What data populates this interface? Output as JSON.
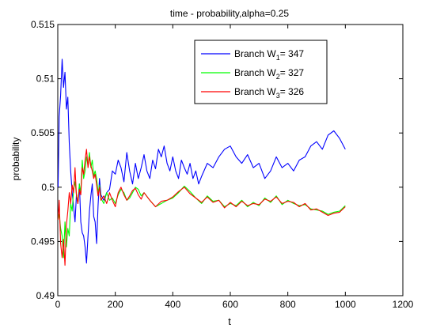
{
  "chart_data": {
    "type": "line",
    "title": "time - probability,alpha=0.25",
    "xlabel": "t",
    "ylabel": "probability",
    "xlim": [
      0,
      1200
    ],
    "ylim": [
      0.49,
      0.515
    ],
    "xticks": [
      0,
      200,
      400,
      600,
      800,
      1000,
      1200
    ],
    "xtick_labels": [
      "0",
      "200",
      "400",
      "600",
      "800",
      "1000",
      "1200"
    ],
    "yticks": [
      0.49,
      0.495,
      0.5,
      0.505,
      0.51,
      0.515
    ],
    "ytick_labels": [
      "0.49",
      "0.495",
      "0.5",
      "0.505",
      "0.51",
      "0.515"
    ],
    "grid": false,
    "legend_position": "top-right",
    "series": [
      {
        "name": "Branch W1= 347",
        "legend_parts": [
          "Branch W",
          "1",
          "= 347"
        ],
        "color": "#0000ff",
        "x": [
          1,
          5,
          10,
          15,
          20,
          25,
          30,
          35,
          40,
          45,
          50,
          55,
          60,
          65,
          70,
          75,
          80,
          85,
          90,
          95,
          100,
          105,
          110,
          115,
          120,
          125,
          130,
          135,
          140,
          145,
          150,
          160,
          170,
          180,
          190,
          200,
          210,
          220,
          230,
          240,
          250,
          260,
          270,
          280,
          290,
          300,
          310,
          320,
          330,
          340,
          350,
          360,
          370,
          380,
          390,
          400,
          410,
          420,
          430,
          440,
          450,
          460,
          470,
          480,
          490,
          500,
          520,
          540,
          560,
          580,
          600,
          620,
          640,
          660,
          680,
          700,
          720,
          740,
          760,
          780,
          800,
          820,
          840,
          860,
          880,
          900,
          920,
          940,
          960,
          980,
          1000
        ],
        "y": [
          0.5,
          0.5065,
          0.5085,
          0.5118,
          0.5092,
          0.5106,
          0.5072,
          0.5083,
          0.5041,
          0.5015,
          0.4995,
          0.4982,
          0.4968,
          0.4993,
          0.4985,
          0.5003,
          0.4968,
          0.4958,
          0.4955,
          0.4945,
          0.493,
          0.4955,
          0.4978,
          0.4992,
          0.5003,
          0.4973,
          0.4968,
          0.4948,
          0.4983,
          0.5008,
          0.4993,
          0.4988,
          0.4995,
          0.4998,
          0.5015,
          0.5012,
          0.5025,
          0.5018,
          0.5005,
          0.5032,
          0.5015,
          0.5003,
          0.5022,
          0.5008,
          0.5018,
          0.503,
          0.5015,
          0.5008,
          0.5025,
          0.5017,
          0.5035,
          0.5028,
          0.5038,
          0.5022,
          0.5015,
          0.5028,
          0.5015,
          0.5008,
          0.5025,
          0.5018,
          0.5012,
          0.5022,
          0.5008,
          0.5015,
          0.5003,
          0.501,
          0.5022,
          0.5018,
          0.5028,
          0.5035,
          0.5038,
          0.5028,
          0.5022,
          0.503,
          0.5018,
          0.5022,
          0.5008,
          0.5015,
          0.5028,
          0.5018,
          0.5022,
          0.5015,
          0.5025,
          0.5028,
          0.5038,
          0.5042,
          0.5035,
          0.5048,
          0.5052,
          0.5045,
          0.5035
        ]
      },
      {
        "name": "Branch W2= 327",
        "legend_parts": [
          "Branch W",
          "2",
          "= 327"
        ],
        "color": "#00ff00",
        "x": [
          1,
          5,
          10,
          15,
          20,
          25,
          30,
          35,
          40,
          45,
          50,
          55,
          60,
          65,
          70,
          75,
          80,
          85,
          90,
          95,
          100,
          105,
          110,
          115,
          120,
          125,
          130,
          135,
          140,
          145,
          150,
          160,
          170,
          180,
          190,
          200,
          210,
          220,
          230,
          240,
          250,
          260,
          270,
          280,
          290,
          300,
          320,
          340,
          360,
          380,
          400,
          420,
          440,
          460,
          480,
          500,
          520,
          540,
          560,
          580,
          600,
          620,
          640,
          660,
          680,
          700,
          720,
          740,
          760,
          780,
          800,
          820,
          840,
          860,
          880,
          900,
          920,
          940,
          960,
          980,
          1000
        ],
        "y": [
          0.497,
          0.4975,
          0.4962,
          0.4955,
          0.4935,
          0.4968,
          0.4945,
          0.4962,
          0.4955,
          0.4985,
          0.4978,
          0.4998,
          0.5005,
          0.4993,
          0.4985,
          0.5003,
          0.4995,
          0.5025,
          0.5008,
          0.5015,
          0.5028,
          0.502,
          0.5032,
          0.5018,
          0.5025,
          0.501,
          0.5015,
          0.5008,
          0.4995,
          0.5002,
          0.499,
          0.4985,
          0.4995,
          0.4988,
          0.499,
          0.4985,
          0.4993,
          0.4998,
          0.4995,
          0.4988,
          0.499,
          0.4995,
          0.5,
          0.4998,
          0.4992,
          0.4995,
          0.4988,
          0.4982,
          0.4985,
          0.4988,
          0.499,
          0.4995,
          0.5001,
          0.4996,
          0.499,
          0.4985,
          0.4992,
          0.4987,
          0.4988,
          0.4982,
          0.4985,
          0.4983,
          0.4988,
          0.4982,
          0.4986,
          0.4983,
          0.499,
          0.4986,
          0.4992,
          0.4984,
          0.4988,
          0.4985,
          0.4983,
          0.4984,
          0.498,
          0.4979,
          0.4978,
          0.4975,
          0.4977,
          0.4978,
          0.4983
        ]
      },
      {
        "name": "Branch W3= 326",
        "legend_parts": [
          "Branch W",
          "3",
          "= 326"
        ],
        "color": "#ff0000",
        "x": [
          1,
          5,
          10,
          15,
          20,
          25,
          30,
          35,
          40,
          45,
          50,
          55,
          60,
          65,
          70,
          75,
          80,
          85,
          90,
          95,
          100,
          105,
          110,
          115,
          120,
          125,
          130,
          135,
          140,
          145,
          150,
          160,
          170,
          180,
          190,
          200,
          210,
          220,
          230,
          240,
          250,
          260,
          270,
          280,
          290,
          300,
          320,
          340,
          360,
          380,
          400,
          420,
          440,
          460,
          480,
          500,
          520,
          540,
          560,
          580,
          600,
          620,
          640,
          660,
          680,
          700,
          720,
          740,
          760,
          780,
          800,
          820,
          840,
          860,
          880,
          900,
          920,
          940,
          960,
          980,
          1000
        ],
        "y": [
          0.497,
          0.4988,
          0.4948,
          0.4935,
          0.4952,
          0.4928,
          0.4965,
          0.4978,
          0.4995,
          0.4985,
          0.5002,
          0.4995,
          0.5018,
          0.4992,
          0.4985,
          0.4998,
          0.4993,
          0.5018,
          0.5012,
          0.5025,
          0.5035,
          0.5018,
          0.5028,
          0.502,
          0.5015,
          0.5008,
          0.5012,
          0.5002,
          0.4992,
          0.5,
          0.4988,
          0.4992,
          0.4985,
          0.4995,
          0.4988,
          0.4982,
          0.4995,
          0.5,
          0.4993,
          0.4988,
          0.4992,
          0.4997,
          0.4999,
          0.4993,
          0.4989,
          0.4995,
          0.4988,
          0.4982,
          0.4987,
          0.4988,
          0.4991,
          0.4996,
          0.5,
          0.4994,
          0.499,
          0.4986,
          0.4991,
          0.4986,
          0.4988,
          0.4981,
          0.4986,
          0.4982,
          0.4987,
          0.4983,
          0.4985,
          0.4984,
          0.4989,
          0.4987,
          0.4991,
          0.4985,
          0.4987,
          0.4986,
          0.4982,
          0.4985,
          0.4979,
          0.498,
          0.4977,
          0.4974,
          0.4976,
          0.4977,
          0.4982
        ]
      }
    ]
  }
}
